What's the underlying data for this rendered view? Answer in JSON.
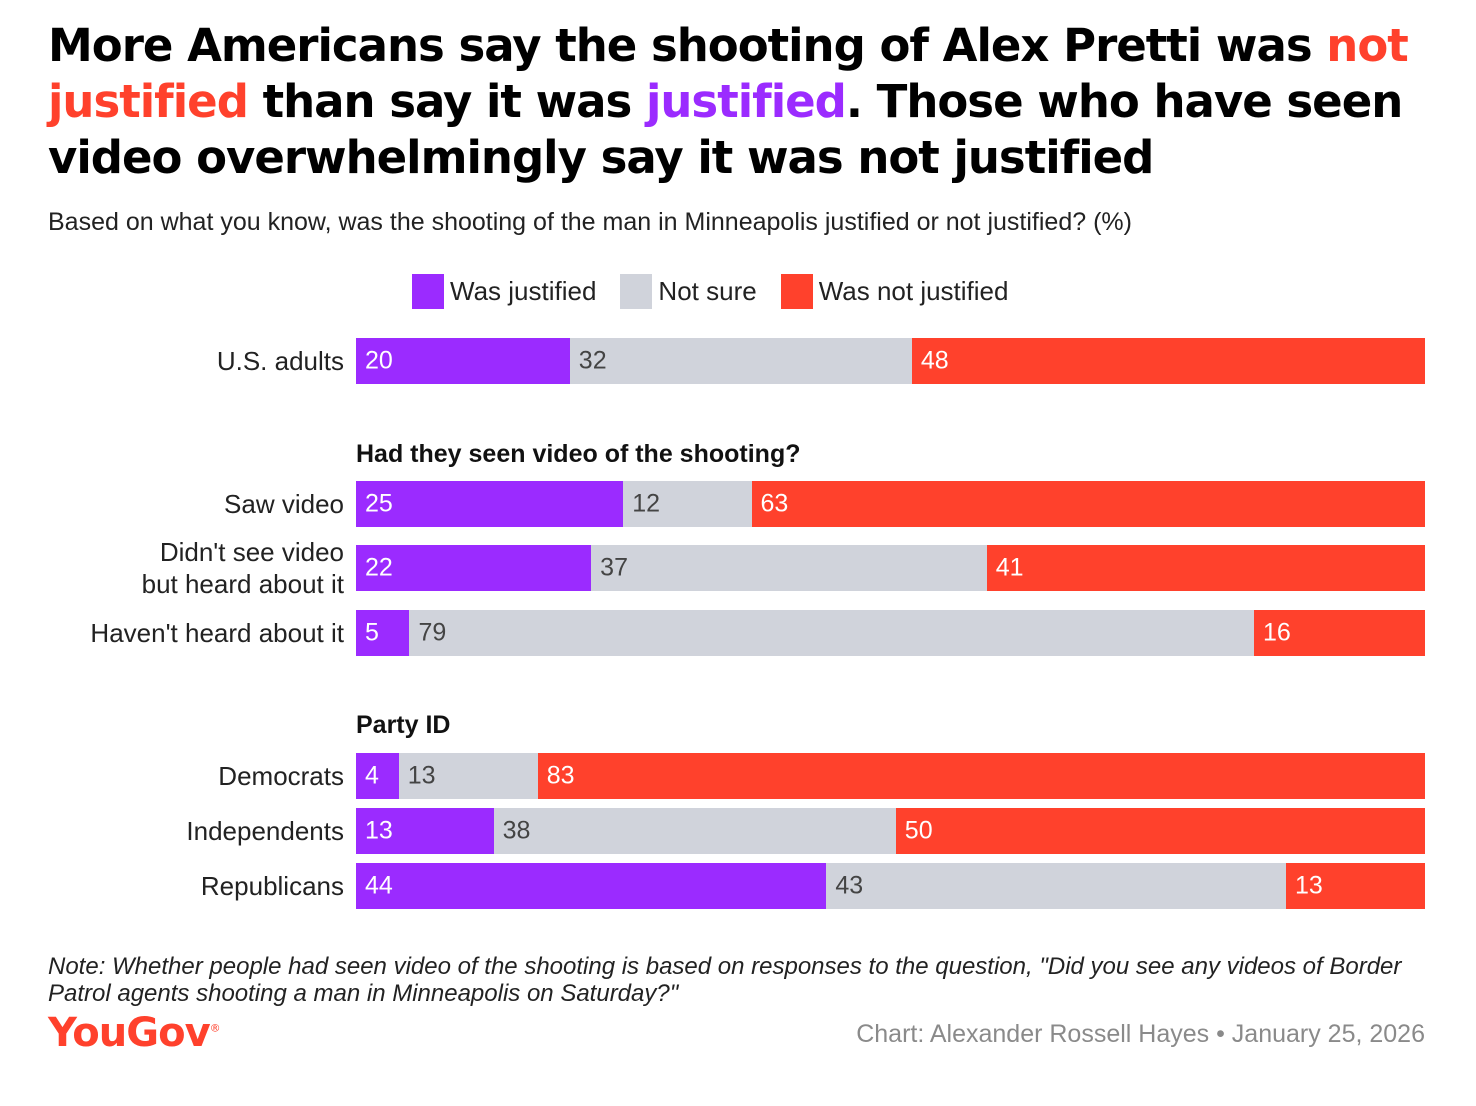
{
  "title": {
    "part1": "More Americans say the shooting of Alex Pretti was ",
    "highlight_red": "not justified",
    "part2": " than say it was ",
    "highlight_purple": "justified",
    "part3": ". Those who have seen video overwhelmingly say it was not justified"
  },
  "subtitle": "Based on what you know, was the shooting of the man in Minneapolis justified or not justified? (%)",
  "legend": [
    {
      "label": "Was justified",
      "color": "#9b2bff"
    },
    {
      "label": "Not sure",
      "color": "#d0d3db"
    },
    {
      "label": "Was not justified",
      "color": "#ff412c"
    }
  ],
  "sections": {
    "video": "Had they seen video of the shooting?",
    "party": "Party ID"
  },
  "chart_data": {
    "type": "bar",
    "orientation": "horizontal",
    "stacked": true,
    "title": "More Americans say the shooting of Alex Pretti was not justified than say it was justified. Those who have seen video overwhelmingly say it was not justified",
    "categories": [
      "U.S. adults",
      "Saw video",
      "Didn't see video but heard about it",
      "Haven't heard about it",
      "Democrats",
      "Independents",
      "Republicans"
    ],
    "category_lines": [
      [
        "U.S. adults"
      ],
      [
        "Saw video"
      ],
      [
        "Didn't see video",
        "but heard about it"
      ],
      [
        "Haven't heard about it"
      ],
      [
        "Democrats"
      ],
      [
        "Independents"
      ],
      [
        "Republicans"
      ]
    ],
    "series": [
      {
        "name": "Was justified",
        "values": [
          20,
          25,
          22,
          5,
          4,
          13,
          44
        ]
      },
      {
        "name": "Not sure",
        "values": [
          32,
          12,
          37,
          79,
          13,
          38,
          43
        ]
      },
      {
        "name": "Was not justified",
        "values": [
          48,
          63,
          41,
          16,
          83,
          50,
          13
        ]
      }
    ],
    "xlim": [
      0,
      100
    ],
    "unit": "%"
  },
  "note": "Note: Whether people had seen video of the shooting is based on responses to the question, \"Did you see any videos of Border Patrol agents shooting a man in Minneapolis on Saturday?\"",
  "logo": "YouGov",
  "credit": "Chart: Alexander Rossell Hayes • January 25, 2026"
}
